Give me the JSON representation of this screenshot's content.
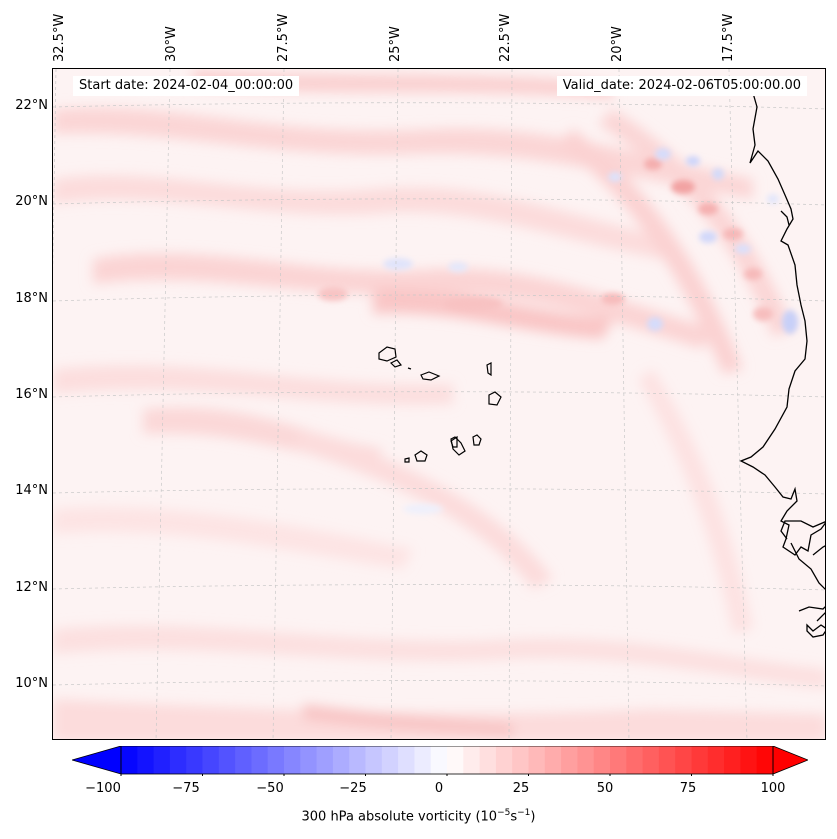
{
  "header": {
    "start_date": "Start date: 2024-02-04_00:00:00",
    "valid_date": "Valid_date: 2024-02-06T05:00:00.00"
  },
  "lon_labels": [
    "32.5°W",
    "30°W",
    "27.5°W",
    "25°W",
    "22.5°W",
    "20°W",
    "17.5°W"
  ],
  "lat_labels": [
    "22°N",
    "20°N",
    "18°N",
    "16°N",
    "14°N",
    "12°N",
    "10°N"
  ],
  "colorbar": {
    "ticks": [
      "−100",
      "−75",
      "−50",
      "−25",
      "0",
      "25",
      "50",
      "75",
      "100"
    ],
    "label_main": "300 hPa absolute vorticity (10",
    "label_exp1": "−5",
    "label_mid": "s",
    "label_exp2": "−1",
    "label_end": ")",
    "min": -100,
    "max": 100,
    "colors": {
      "negative": "#0000ff",
      "zero": "#ffffff",
      "positive": "#ff0000"
    }
  },
  "map": {
    "field": "300 hPa absolute vorticity",
    "coastline_color": "#000000",
    "gridline_color": "#c8c8c8",
    "background_tint": "#fdf2f2"
  }
}
